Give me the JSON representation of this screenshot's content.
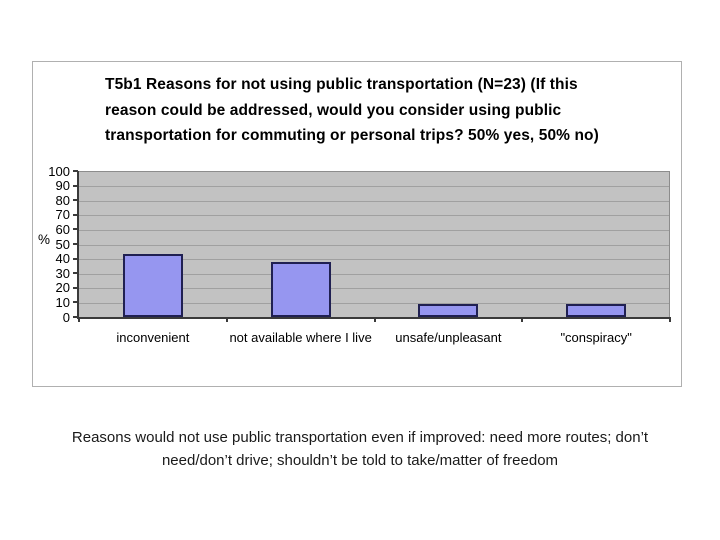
{
  "slide": {
    "background": "#ffffff"
  },
  "chart_data": {
    "type": "bar",
    "title": "T5b1 Reasons for not using public transportation (N=23) (If this reason could be addressed, would you consider using public transportation for commuting or personal trips? 50% yes, 50% no)",
    "categories": [
      "inconvenient",
      "not available where I live",
      "unsafe/unpleasant",
      "\"conspiracy\""
    ],
    "values": [
      43,
      38,
      9,
      9
    ],
    "xlabel": "",
    "ylabel": "%",
    "ylim": [
      0,
      100
    ],
    "y_ticks": [
      100,
      90,
      80,
      70,
      60,
      50,
      40,
      30,
      20,
      10,
      0
    ],
    "grid": true,
    "legend": false,
    "colors": {
      "bar_fill": "#9696f0",
      "bar_border": "#202052",
      "plot_background": "#c2c2c2",
      "gridline": "#a0a0a0",
      "axis": "#3a3a3a",
      "frame_border": "#b0b0b0"
    }
  },
  "caption": "Reasons would not use public transportation even if improved: need more routes; don’t need/don’t drive; shouldn’t be told to take/matter of freedom"
}
